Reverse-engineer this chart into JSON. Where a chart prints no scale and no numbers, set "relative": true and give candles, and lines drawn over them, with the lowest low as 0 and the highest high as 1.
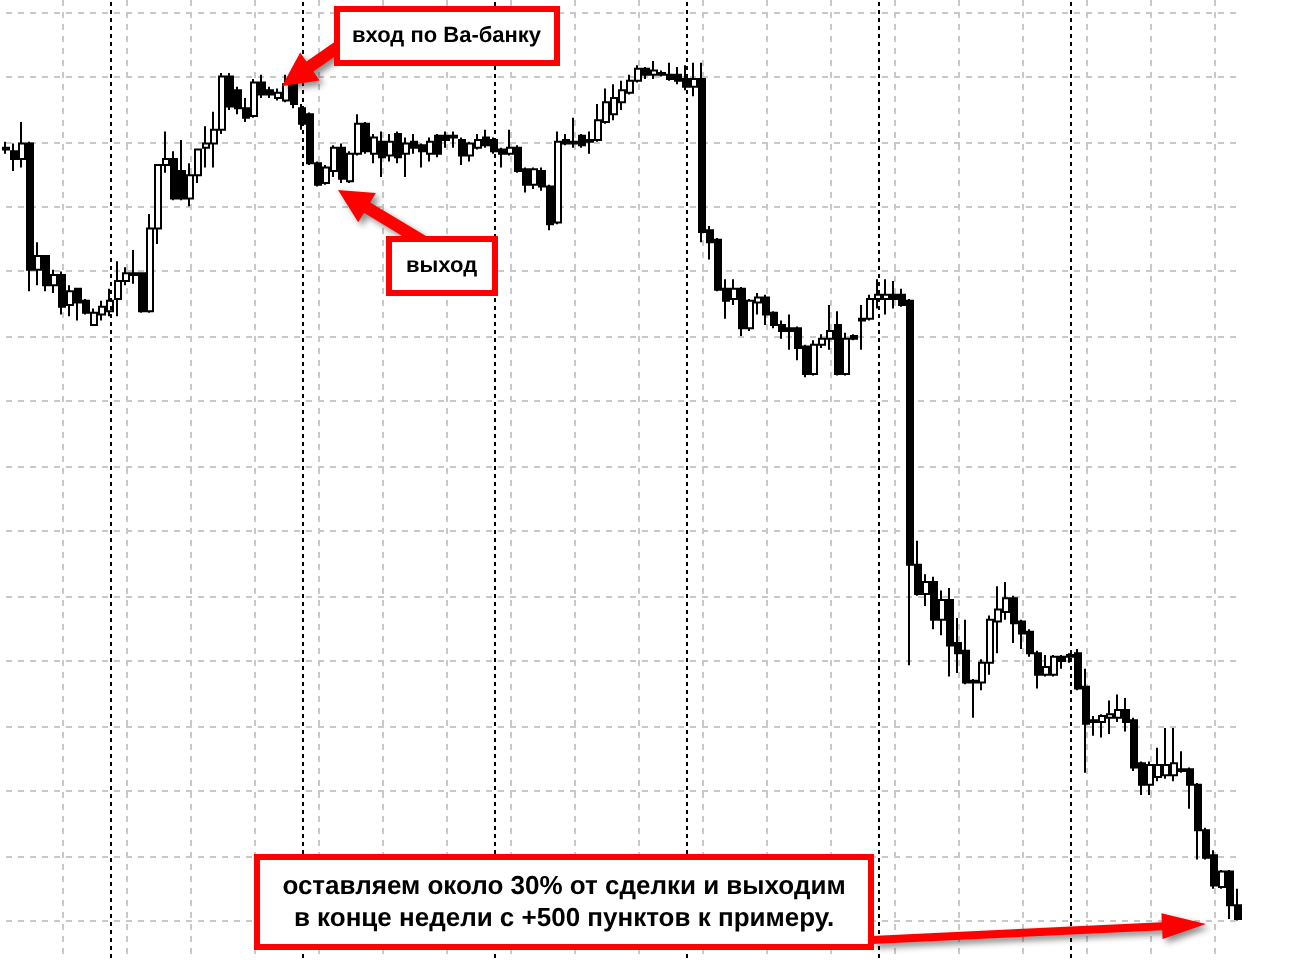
{
  "chart_data": {
    "type": "candlestick",
    "relative": true,
    "color": "#000000",
    "grid": true,
    "categories": [
      null,
      null,
      null,
      null,
      null,
      null,
      null,
      null,
      null,
      null,
      null,
      null,
      null,
      null,
      null,
      null,
      null,
      null,
      null,
      null,
      null,
      null,
      null,
      null,
      null,
      null,
      null,
      null,
      null,
      null,
      null,
      null,
      null,
      null,
      null,
      null,
      null,
      null,
      null,
      null,
      null,
      null,
      null,
      null,
      null,
      null,
      null,
      null,
      null,
      null,
      null,
      null,
      null,
      null,
      null,
      null,
      null,
      null,
      null,
      null,
      null,
      null,
      null,
      null,
      null,
      null,
      null,
      null,
      null,
      null,
      null,
      null,
      null,
      null,
      null,
      null,
      null,
      null,
      null,
      null,
      null,
      null,
      null,
      null,
      null,
      null,
      null,
      null,
      null,
      null,
      null,
      null,
      null,
      null,
      null,
      null,
      null,
      null,
      null,
      null,
      null,
      null,
      null,
      null,
      null,
      null,
      null,
      null,
      null,
      null,
      null,
      null,
      null,
      null,
      null,
      null,
      null,
      null,
      null,
      null,
      null,
      null,
      null,
      null,
      null,
      null,
      null,
      null,
      null,
      null,
      null,
      null,
      null,
      null,
      null,
      null,
      null,
      null,
      null,
      null,
      null,
      null,
      null,
      null,
      null,
      null,
      null,
      null,
      null,
      null,
      null,
      null,
      null,
      null,
      null
    ],
    "ohlc": [
      [
        0.899,
        0.906,
        0.892,
        0.897
      ],
      [
        0.895,
        0.904,
        0.872,
        0.886
      ],
      [
        0.886,
        0.929,
        0.876,
        0.904
      ],
      [
        0.904,
        0.906,
        0.732,
        0.757
      ],
      [
        0.757,
        0.789,
        0.739,
        0.773
      ],
      [
        0.773,
        0.773,
        0.732,
        0.739
      ],
      [
        0.739,
        0.757,
        0.73,
        0.751
      ],
      [
        0.751,
        0.755,
        0.705,
        0.714
      ],
      [
        0.716,
        0.739,
        0.703,
        0.732
      ],
      [
        0.735,
        0.735,
        0.698,
        0.719
      ],
      [
        0.721,
        0.723,
        0.705,
        0.707
      ],
      [
        0.693,
        0.712,
        0.693,
        0.707
      ],
      [
        0.705,
        0.721,
        0.698,
        0.714
      ],
      [
        0.709,
        0.735,
        0.703,
        0.721
      ],
      [
        0.723,
        0.767,
        0.703,
        0.744
      ],
      [
        0.744,
        0.76,
        0.739,
        0.753
      ],
      [
        0.751,
        0.78,
        0.741,
        0.753
      ],
      [
        0.753,
        0.753,
        0.707,
        0.709
      ],
      [
        0.709,
        0.822,
        0.707,
        0.805
      ],
      [
        0.805,
        0.879,
        0.787,
        0.879
      ],
      [
        0.879,
        0.918,
        0.87,
        0.886
      ],
      [
        0.886,
        0.895,
        0.838,
        0.84
      ],
      [
        0.872,
        0.908,
        0.838,
        0.84
      ],
      [
        0.84,
        0.881,
        0.831,
        0.867
      ],
      [
        0.867,
        0.897,
        0.858,
        0.897
      ],
      [
        0.899,
        0.924,
        0.876,
        0.904
      ],
      [
        0.904,
        0.941,
        0.876,
        0.92
      ],
      [
        0.92,
        0.986,
        0.915,
        0.982
      ],
      [
        0.982,
        0.986,
        0.943,
        0.947
      ],
      [
        0.966,
        0.97,
        0.938,
        0.945
      ],
      [
        0.945,
        0.957,
        0.929,
        0.934
      ],
      [
        0.936,
        0.979,
        0.934,
        0.975
      ],
      [
        0.975,
        0.984,
        0.957,
        0.961
      ],
      [
        0.966,
        0.97,
        0.957,
        0.961
      ],
      [
        0.957,
        0.968,
        0.954,
        0.963
      ],
      [
        0.954,
        0.984,
        0.952,
        0.973
      ],
      [
        0.973,
        0.975,
        0.945,
        0.95
      ],
      [
        0.945,
        0.95,
        0.92,
        0.927
      ],
      [
        0.938,
        0.94,
        0.879,
        0.881
      ],
      [
        0.881,
        0.883,
        0.854,
        0.856
      ],
      [
        0.858,
        0.879,
        0.856,
        0.876
      ],
      [
        0.872,
        0.902,
        0.865,
        0.899
      ],
      [
        0.899,
        0.904,
        0.858,
        0.863
      ],
      [
        0.86,
        0.895,
        0.858,
        0.892
      ],
      [
        0.892,
        0.938,
        0.89,
        0.927
      ],
      [
        0.927,
        0.929,
        0.892,
        0.895
      ],
      [
        0.892,
        0.915,
        0.881,
        0.911
      ],
      [
        0.906,
        0.918,
        0.865,
        0.888
      ],
      [
        0.89,
        0.915,
        0.883,
        0.906
      ],
      [
        0.915,
        0.918,
        0.881,
        0.888
      ],
      [
        0.892,
        0.911,
        0.865,
        0.904
      ],
      [
        0.906,
        0.915,
        0.892,
        0.899
      ],
      [
        0.902,
        0.904,
        0.876,
        0.895
      ],
      [
        0.892,
        0.911,
        0.883,
        0.906
      ],
      [
        0.913,
        0.915,
        0.888,
        0.892
      ],
      [
        0.913,
        0.918,
        0.899,
        0.908
      ],
      [
        0.911,
        0.918,
        0.899,
        0.913
      ],
      [
        0.908,
        0.911,
        0.879,
        0.89
      ],
      [
        0.89,
        0.906,
        0.883,
        0.904
      ],
      [
        0.899,
        0.915,
        0.897,
        0.908
      ],
      [
        0.911,
        0.92,
        0.899,
        0.902
      ],
      [
        0.908,
        0.911,
        0.892,
        0.895
      ],
      [
        0.897,
        0.899,
        0.876,
        0.892
      ],
      [
        0.892,
        0.92,
        0.89,
        0.899
      ],
      [
        0.899,
        0.902,
        0.87,
        0.872
      ],
      [
        0.874,
        0.876,
        0.847,
        0.856
      ],
      [
        0.856,
        0.876,
        0.851,
        0.874
      ],
      [
        0.872,
        0.876,
        0.849,
        0.854
      ],
      [
        0.854,
        0.856,
        0.803,
        0.81
      ],
      [
        0.812,
        0.918,
        0.81,
        0.906
      ],
      [
        0.908,
        0.915,
        0.902,
        0.904
      ],
      [
        0.906,
        0.934,
        0.899,
        0.904
      ],
      [
        0.913,
        0.915,
        0.899,
        0.902
      ],
      [
        0.908,
        0.918,
        0.892,
        0.906
      ],
      [
        0.908,
        0.95,
        0.906,
        0.931
      ],
      [
        0.929,
        0.968,
        0.927,
        0.952
      ],
      [
        0.938,
        0.973,
        0.931,
        0.957
      ],
      [
        0.952,
        0.977,
        0.943,
        0.966
      ],
      [
        0.963,
        0.984,
        0.961,
        0.977
      ],
      [
        0.977,
        0.995,
        0.975,
        0.991
      ],
      [
        0.991,
        0.993,
        0.979,
        0.984
      ],
      [
        0.984,
        1,
        0.979,
        0.989
      ],
      [
        0.986,
        0.989,
        0.982,
        0.984
      ],
      [
        0.984,
        0.998,
        0.977,
        0.979
      ],
      [
        0.984,
        0.993,
        0.973,
        0.977
      ],
      [
        0.979,
        0.995,
        0.966,
        0.97
      ],
      [
        0.97,
        0.998,
        0.959,
        0.979
      ],
      [
        0.979,
        0.998,
        0.789,
        0.801
      ],
      [
        0.803,
        0.808,
        0.769,
        0.789
      ],
      [
        0.792,
        0.794,
        0.732,
        0.734
      ],
      [
        0.735,
        0.746,
        0.7,
        0.721
      ],
      [
        0.723,
        0.746,
        0.716,
        0.735
      ],
      [
        0.735,
        0.737,
        0.68,
        0.689
      ],
      [
        0.689,
        0.723,
        0.686,
        0.721
      ],
      [
        0.719,
        0.73,
        0.705,
        0.725
      ],
      [
        0.725,
        0.728,
        0.693,
        0.705
      ],
      [
        0.707,
        0.709,
        0.689,
        0.693
      ],
      [
        0.693,
        0.698,
        0.677,
        0.686
      ],
      [
        0.689,
        0.705,
        0.664,
        0.686
      ],
      [
        0.689,
        0.691,
        0.652,
        0.666
      ],
      [
        0.668,
        0.67,
        0.632,
        0.636
      ],
      [
        0.636,
        0.675,
        0.634,
        0.67
      ],
      [
        0.67,
        0.682,
        0.666,
        0.677
      ],
      [
        0.677,
        0.716,
        0.664,
        0.686
      ],
      [
        0.693,
        0.709,
        0.634,
        0.636
      ],
      [
        0.636,
        0.684,
        0.634,
        0.677
      ],
      [
        0.68,
        0.682,
        0.675,
        0.677
      ],
      [
        0.698,
        0.716,
        0.664,
        0.7
      ],
      [
        0.7,
        0.728,
        0.698,
        0.723
      ],
      [
        0.723,
        0.746,
        0.712,
        0.728
      ],
      [
        0.723,
        0.746,
        0.705,
        0.728
      ],
      [
        0.728,
        0.744,
        0.712,
        0.723
      ],
      [
        0.728,
        0.735,
        0.714,
        0.716
      ],
      [
        0.721,
        0.723,
        0.297,
        0.414
      ],
      [
        0.414,
        0.442,
        0.378,
        0.38
      ],
      [
        0.38,
        0.403,
        0.366,
        0.394
      ],
      [
        0.394,
        0.4,
        0.339,
        0.35
      ],
      [
        0.35,
        0.384,
        0.332,
        0.373
      ],
      [
        0.373,
        0.387,
        0.284,
        0.32
      ],
      [
        0.323,
        0.352,
        0.288,
        0.311
      ],
      [
        0.314,
        0.35,
        0.275,
        0.277
      ],
      [
        0.277,
        0.281,
        0.236,
        0.279
      ],
      [
        0.277,
        0.304,
        0.268,
        0.3
      ],
      [
        0.3,
        0.355,
        0.286,
        0.35
      ],
      [
        0.348,
        0.389,
        0.311,
        0.362
      ],
      [
        0.359,
        0.394,
        0.35,
        0.375
      ],
      [
        0.375,
        0.378,
        0.323,
        0.346
      ],
      [
        0.348,
        0.35,
        0.316,
        0.334
      ],
      [
        0.336,
        0.339,
        0.307,
        0.311
      ],
      [
        0.311,
        0.314,
        0.27,
        0.286
      ],
      [
        0.286,
        0.309,
        0.284,
        0.295
      ],
      [
        0.286,
        0.309,
        0.284,
        0.307
      ],
      [
        0.307,
        0.309,
        0.293,
        0.302
      ],
      [
        0.307,
        0.311,
        0.3,
        0.309
      ],
      [
        0.311,
        0.316,
        0.268,
        0.27
      ],
      [
        0.272,
        0.293,
        0.172,
        0.229
      ],
      [
        0.233,
        0.238,
        0.215,
        0.231
      ],
      [
        0.231,
        0.24,
        0.213,
        0.238
      ],
      [
        0.236,
        0.256,
        0.217,
        0.24
      ],
      [
        0.236,
        0.263,
        0.231,
        0.245
      ],
      [
        0.245,
        0.259,
        0.22,
        0.231
      ],
      [
        0.233,
        0.236,
        0.174,
        0.178
      ],
      [
        0.183,
        0.185,
        0.146,
        0.158
      ],
      [
        0.158,
        0.185,
        0.146,
        0.181
      ],
      [
        0.167,
        0.201,
        0.162,
        0.181
      ],
      [
        0.169,
        0.224,
        0.165,
        0.181
      ],
      [
        0.169,
        0.224,
        0.162,
        0.183
      ],
      [
        0.176,
        0.197,
        0.172,
        0.174
      ],
      [
        0.176,
        0.178,
        0.13,
        0.158
      ],
      [
        0.158,
        0.16,
        0.071,
        0.105
      ],
      [
        0.105,
        0.108,
        0.071,
        0.073
      ],
      [
        0.076,
        0.082,
        0.037,
        0.041
      ],
      [
        0.039,
        0.059,
        0.037,
        0.057
      ],
      [
        0.057,
        0.059,
        0.002,
        0.018
      ],
      [
        0.018,
        0.037,
        0,
        0.002
      ]
    ],
    "annotations": [
      "вход по Ва-банку",
      "выход",
      "оставляем около 30% от сделки и выходим\nв конце недели с +500 пунктов к примеру."
    ]
  }
}
